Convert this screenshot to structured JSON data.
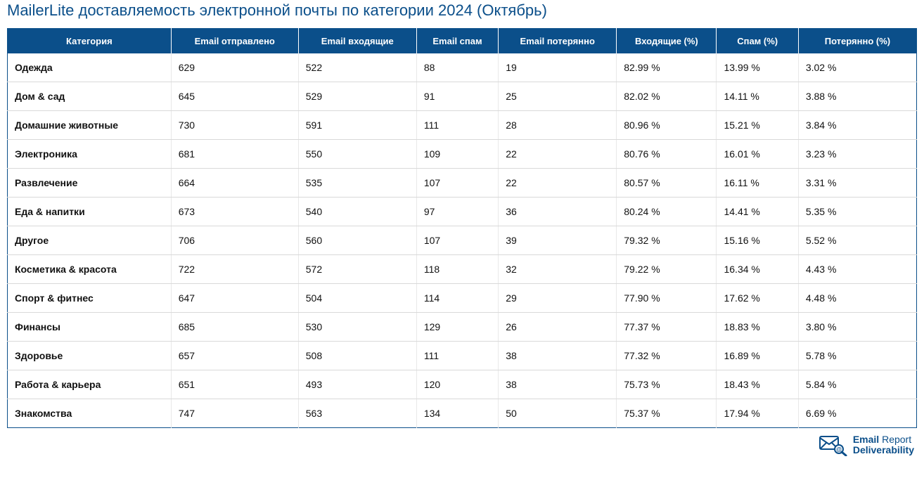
{
  "title": "MailerLite доставляемость электронной почты по категории 2024 (Октябрь)",
  "colors": {
    "header_bg": "#0b4f8a",
    "header_text": "#ffffff",
    "title_color": "#0b4f8a",
    "row_border": "#d9d9d9",
    "cell_text": "#111111",
    "logo_accent": "#0b4f8a"
  },
  "table": {
    "columns": [
      "Категория",
      "Email отправлено",
      "Email входящие",
      "Email спам",
      "Email потерянно",
      "Входящие (%)",
      "Спам (%)",
      "Потерянно (%)"
    ],
    "rows": [
      {
        "c0": "Одежда",
        "c1": "629",
        "c2": "522",
        "c3": "88",
        "c4": "19",
        "c5": "82.99 %",
        "c6": "13.99 %",
        "c7": "3.02 %"
      },
      {
        "c0": "Дом & сад",
        "c1": "645",
        "c2": "529",
        "c3": "91",
        "c4": "25",
        "c5": "82.02 %",
        "c6": "14.11 %",
        "c7": "3.88 %"
      },
      {
        "c0": "Домашние животные",
        "c1": "730",
        "c2": "591",
        "c3": "111",
        "c4": "28",
        "c5": "80.96 %",
        "c6": "15.21 %",
        "c7": "3.84 %"
      },
      {
        "c0": "Электроника",
        "c1": "681",
        "c2": "550",
        "c3": "109",
        "c4": "22",
        "c5": "80.76 %",
        "c6": "16.01 %",
        "c7": "3.23 %"
      },
      {
        "c0": "Развлечение",
        "c1": "664",
        "c2": "535",
        "c3": "107",
        "c4": "22",
        "c5": "80.57 %",
        "c6": "16.11 %",
        "c7": "3.31 %"
      },
      {
        "c0": "Еда & напитки",
        "c1": "673",
        "c2": "540",
        "c3": "97",
        "c4": "36",
        "c5": "80.24 %",
        "c6": "14.41 %",
        "c7": "5.35 %"
      },
      {
        "c0": "Другое",
        "c1": "706",
        "c2": "560",
        "c3": "107",
        "c4": "39",
        "c5": "79.32 %",
        "c6": "15.16 %",
        "c7": "5.52 %"
      },
      {
        "c0": "Косметика & красота",
        "c1": "722",
        "c2": "572",
        "c3": "118",
        "c4": "32",
        "c5": "79.22 %",
        "c6": "16.34 %",
        "c7": "4.43 %"
      },
      {
        "c0": "Спорт & фитнес",
        "c1": "647",
        "c2": "504",
        "c3": "114",
        "c4": "29",
        "c5": "77.90 %",
        "c6": "17.62 %",
        "c7": "4.48 %"
      },
      {
        "c0": "Финансы",
        "c1": "685",
        "c2": "530",
        "c3": "129",
        "c4": "26",
        "c5": "77.37 %",
        "c6": "18.83 %",
        "c7": "3.80 %"
      },
      {
        "c0": "Здоровье",
        "c1": "657",
        "c2": "508",
        "c3": "111",
        "c4": "38",
        "c5": "77.32 %",
        "c6": "16.89 %",
        "c7": "5.78 %"
      },
      {
        "c0": "Работа & карьера",
        "c1": "651",
        "c2": "493",
        "c3": "120",
        "c4": "38",
        "c5": "75.73 %",
        "c6": "18.43 %",
        "c7": "5.84 %"
      },
      {
        "c0": "Знакомства",
        "c1": "747",
        "c2": "563",
        "c3": "134",
        "c4": "50",
        "c5": "75.37 %",
        "c6": "17.94 %",
        "c7": "6.69 %"
      }
    ]
  },
  "footer": {
    "brand_bold": "Email",
    "brand_light": " Report",
    "brand_sub": "Deliverability"
  }
}
